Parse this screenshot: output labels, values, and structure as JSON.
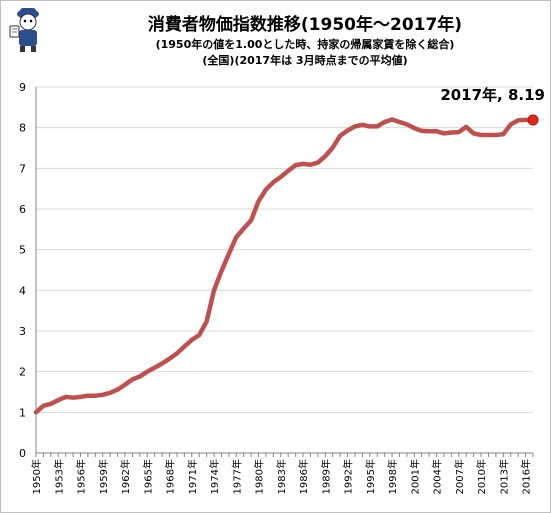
{
  "title": "消費者物価指数推移(1950年～2017年)",
  "subtitle_1": "(1950年の値を1.00とした時、持家の帰属家賃を除く総合)",
  "subtitle_2": "(全国)(2017年は 3月時点までの平均値)",
  "mascot_icon": "mascot-character-icon",
  "colors": {
    "line": "#c0504d",
    "marker": "#e0281e",
    "grid": "#d9d9d9",
    "axis": "#868686"
  },
  "chart_data": {
    "type": "line",
    "title": "消費者物価指数推移(1950年～2017年)",
    "ylim": [
      0,
      9
    ],
    "y_ticks": [
      "0",
      "1",
      "2",
      "3",
      "4",
      "5",
      "6",
      "7",
      "8",
      "9"
    ],
    "x_tick_labels": [
      "1950年",
      "1953年",
      "1956年",
      "1959年",
      "1962年",
      "1965年",
      "1968年",
      "1971年",
      "1974年",
      "1977年",
      "1980年",
      "1983年",
      "1986年",
      "1989年",
      "1992年",
      "1995年",
      "1998年",
      "2001年",
      "2004年",
      "2007年",
      "2010年",
      "2013年",
      "2016年"
    ],
    "grid": "horizontal",
    "x": [
      1950,
      1951,
      1952,
      1953,
      1954,
      1955,
      1956,
      1957,
      1958,
      1959,
      1960,
      1961,
      1962,
      1963,
      1964,
      1965,
      1966,
      1967,
      1968,
      1969,
      1970,
      1971,
      1972,
      1973,
      1974,
      1975,
      1976,
      1977,
      1978,
      1979,
      1980,
      1981,
      1982,
      1983,
      1984,
      1985,
      1986,
      1987,
      1988,
      1989,
      1990,
      1991,
      1992,
      1993,
      1994,
      1995,
      1996,
      1997,
      1998,
      1999,
      2000,
      2001,
      2002,
      2003,
      2004,
      2005,
      2006,
      2007,
      2008,
      2009,
      2010,
      2011,
      2012,
      2013,
      2014,
      2015,
      2016,
      2017
    ],
    "values": [
      1.0,
      1.16,
      1.21,
      1.3,
      1.38,
      1.36,
      1.38,
      1.41,
      1.41,
      1.43,
      1.48,
      1.56,
      1.68,
      1.81,
      1.88,
      2.0,
      2.1,
      2.2,
      2.32,
      2.45,
      2.62,
      2.78,
      2.9,
      3.23,
      4.0,
      4.47,
      4.9,
      5.31,
      5.52,
      5.72,
      6.19,
      6.48,
      6.66,
      6.79,
      6.94,
      7.08,
      7.11,
      7.09,
      7.14,
      7.3,
      7.51,
      7.8,
      7.93,
      8.03,
      8.07,
      8.03,
      8.03,
      8.14,
      8.2,
      8.14,
      8.08,
      7.99,
      7.92,
      7.91,
      7.91,
      7.86,
      7.88,
      7.89,
      8.02,
      7.86,
      7.82,
      7.82,
      7.82,
      7.84,
      8.08,
      8.18,
      8.19,
      8.19
    ],
    "annotation": "2017年, 8.19"
  }
}
